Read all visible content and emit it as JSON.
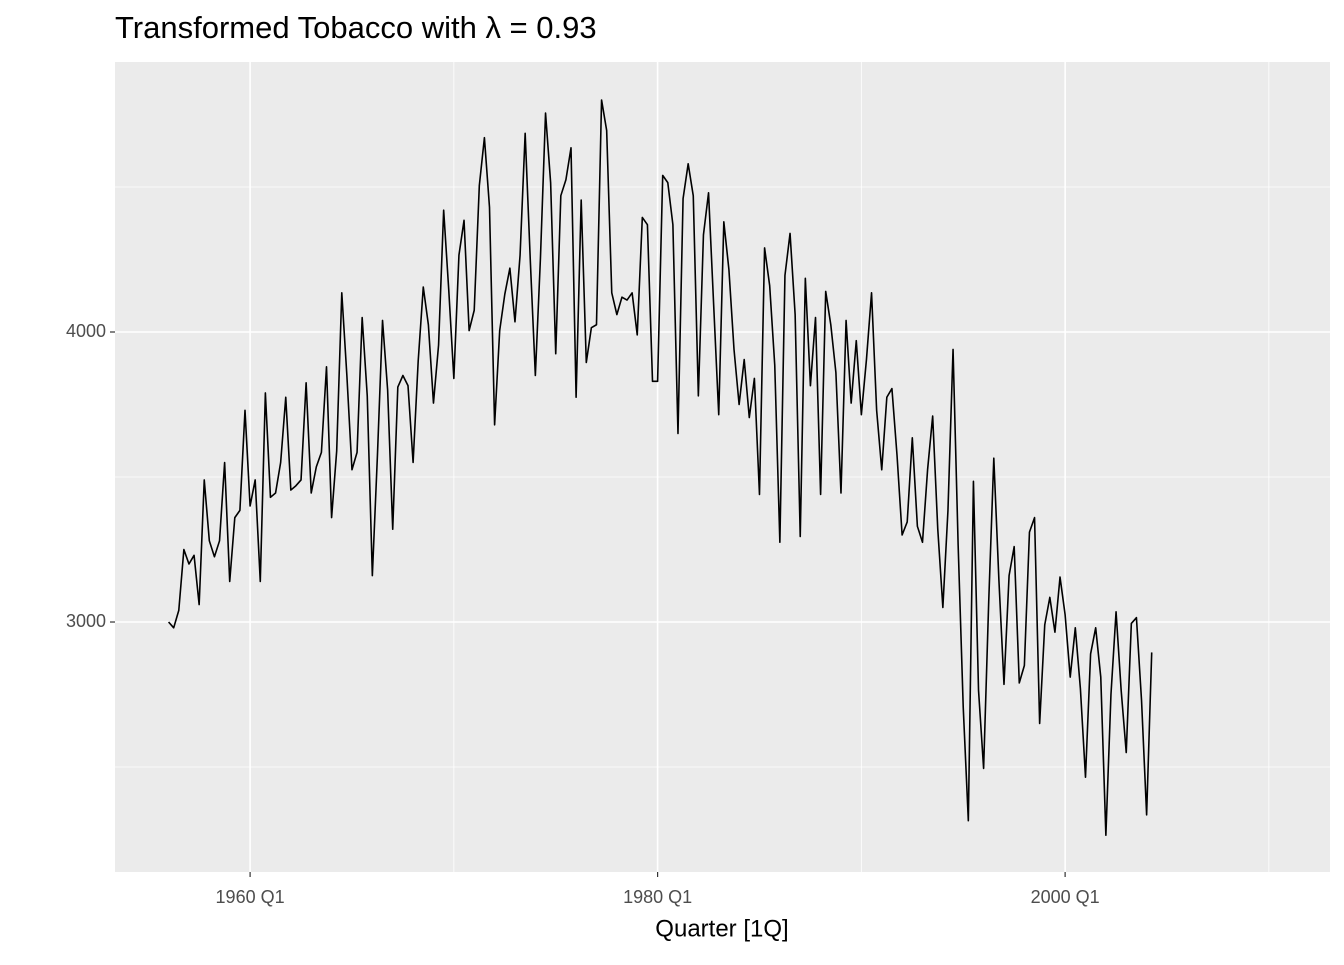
{
  "chart_data": {
    "type": "line",
    "title": "Transformed Tobacco with λ = 0.93",
    "x_label": "Quarter [1Q]",
    "x": [
      "1956 Q1",
      "1956 Q2",
      "1956 Q3",
      "1956 Q4",
      "1957 Q1",
      "1957 Q2",
      "1957 Q3",
      "1957 Q4",
      "1958 Q1",
      "1958 Q2",
      "1958 Q3",
      "1958 Q4",
      "1959 Q1",
      "1959 Q2",
      "1959 Q3",
      "1959 Q4",
      "1960 Q1",
      "1960 Q2",
      "1960 Q3",
      "1960 Q4",
      "1961 Q1",
      "1961 Q2",
      "1961 Q3",
      "1961 Q4",
      "1962 Q1",
      "1962 Q2",
      "1962 Q3",
      "1962 Q4",
      "1963 Q1",
      "1963 Q2",
      "1963 Q3",
      "1963 Q4",
      "1964 Q1",
      "1964 Q2",
      "1964 Q3",
      "1964 Q4",
      "1965 Q1",
      "1965 Q2",
      "1965 Q3",
      "1965 Q4",
      "1966 Q1",
      "1966 Q2",
      "1966 Q3",
      "1966 Q4",
      "1967 Q1",
      "1967 Q2",
      "1967 Q3",
      "1967 Q4",
      "1968 Q1",
      "1968 Q2",
      "1968 Q3",
      "1968 Q4",
      "1969 Q1",
      "1969 Q2",
      "1969 Q3",
      "1969 Q4",
      "1970 Q1",
      "1970 Q2",
      "1970 Q3",
      "1970 Q4",
      "1971 Q1",
      "1971 Q2",
      "1971 Q3",
      "1971 Q4",
      "1972 Q1",
      "1972 Q2",
      "1972 Q3",
      "1972 Q4",
      "1973 Q1",
      "1973 Q2",
      "1973 Q3",
      "1973 Q4",
      "1974 Q1",
      "1974 Q2",
      "1974 Q3",
      "1974 Q4",
      "1975 Q1",
      "1975 Q2",
      "1975 Q3",
      "1975 Q4",
      "1976 Q1",
      "1976 Q2",
      "1976 Q3",
      "1976 Q4",
      "1977 Q1",
      "1977 Q2",
      "1977 Q3",
      "1977 Q4",
      "1978 Q1",
      "1978 Q2",
      "1978 Q3",
      "1978 Q4",
      "1979 Q1",
      "1979 Q2",
      "1979 Q3",
      "1979 Q4",
      "1980 Q1",
      "1980 Q2",
      "1980 Q3",
      "1980 Q4",
      "1981 Q1",
      "1981 Q2",
      "1981 Q3",
      "1981 Q4",
      "1982 Q1",
      "1982 Q2",
      "1982 Q3",
      "1982 Q4",
      "1983 Q1",
      "1983 Q2",
      "1983 Q3",
      "1983 Q4",
      "1984 Q1",
      "1984 Q2",
      "1984 Q3",
      "1984 Q4",
      "1985 Q1",
      "1985 Q2",
      "1985 Q3",
      "1985 Q4",
      "1986 Q1",
      "1986 Q2",
      "1986 Q3",
      "1986 Q4",
      "1987 Q1",
      "1987 Q2",
      "1987 Q3",
      "1987 Q4",
      "1988 Q1",
      "1988 Q2",
      "1988 Q3",
      "1988 Q4",
      "1989 Q1",
      "1989 Q2",
      "1989 Q3",
      "1989 Q4",
      "1990 Q1",
      "1990 Q2",
      "1990 Q3",
      "1990 Q4",
      "1991 Q1",
      "1991 Q2",
      "1991 Q3",
      "1991 Q4",
      "1992 Q1",
      "1992 Q2",
      "1992 Q3",
      "1992 Q4",
      "1993 Q1",
      "1993 Q2",
      "1993 Q3",
      "1993 Q4",
      "1994 Q1",
      "1994 Q2",
      "1994 Q3",
      "1994 Q4",
      "1995 Q1",
      "1995 Q2",
      "1995 Q3",
      "1995 Q4",
      "1996 Q1",
      "1996 Q2",
      "1996 Q3",
      "1996 Q4",
      "1997 Q1",
      "1997 Q2",
      "1997 Q3",
      "1997 Q4",
      "1998 Q1",
      "1998 Q2",
      "1998 Q3",
      "1998 Q4",
      "1999 Q1",
      "1999 Q2",
      "1999 Q3",
      "1999 Q4",
      "2000 Q1",
      "2000 Q2",
      "2000 Q3",
      "2000 Q4",
      "2001 Q1",
      "2001 Q2",
      "2001 Q3",
      "2001 Q4",
      "2002 Q1",
      "2002 Q2",
      "2002 Q3",
      "2002 Q4",
      "2003 Q1",
      "2003 Q2",
      "2003 Q3",
      "2003 Q4",
      "2004 Q1",
      "2004 Q2"
    ],
    "values": [
      3000,
      2980,
      3040,
      3250,
      3200,
      3230,
      3060,
      3490,
      3280,
      3225,
      3280,
      3550,
      3140,
      3360,
      3385,
      3730,
      3400,
      3490,
      3140,
      3790,
      3430,
      3445,
      3550,
      3775,
      3455,
      3470,
      3490,
      3825,
      3445,
      3535,
      3585,
      3880,
      3360,
      3590,
      4135,
      3850,
      3525,
      3585,
      4050,
      3780,
      3160,
      3575,
      4040,
      3800,
      3320,
      3810,
      3850,
      3815,
      3550,
      3900,
      4155,
      4025,
      3755,
      3955,
      4420,
      4145,
      3840,
      4265,
      4385,
      4005,
      4075,
      4505,
      4670,
      4430,
      3680,
      4005,
      4130,
      4220,
      4035,
      4265,
      4685,
      4250,
      3850,
      4255,
      4755,
      4515,
      3925,
      4470,
      4525,
      4635,
      3775,
      4455,
      3895,
      4015,
      4025,
      4800,
      4695,
      4135,
      4060,
      4120,
      4110,
      4135,
      3990,
      4395,
      4370,
      3830,
      3830,
      4540,
      4515,
      4370,
      3650,
      4460,
      4580,
      4470,
      3780,
      4335,
      4480,
      4095,
      3715,
      4380,
      4215,
      3940,
      3750,
      3905,
      3705,
      3840,
      3440,
      4290,
      4160,
      3885,
      3275,
      4195,
      4340,
      4060,
      3295,
      4185,
      3815,
      4050,
      3440,
      4140,
      4025,
      3860,
      3445,
      4040,
      3755,
      3970,
      3715,
      3905,
      4135,
      3730,
      3525,
      3775,
      3805,
      3575,
      3300,
      3345,
      3635,
      3330,
      3275,
      3525,
      3710,
      3320,
      3050,
      3385,
      3940,
      3265,
      2705,
      2315,
      3485,
      2765,
      2495,
      3070,
      3565,
      3145,
      2785,
      3160,
      3260,
      2790,
      2850,
      3310,
      3360,
      2650,
      2990,
      3085,
      2965,
      3155,
      3025,
      2810,
      2980,
      2770,
      2465,
      2890,
      2980,
      2810,
      2265,
      2750,
      3035,
      2765,
      2550,
      2995,
      3015,
      2730,
      2335,
      2895
    ],
    "color": "#000000",
    "xlim": [
      1953.37,
      2013.0
    ],
    "xticks": [
      {
        "value": 1960,
        "label": "1960 Q1"
      },
      {
        "value": 1980,
        "label": "1980 Q1"
      },
      {
        "value": 2000,
        "label": "2000 Q1"
      }
    ],
    "ylim": [
      2138,
      4931
    ],
    "yticks": [
      3000,
      4000
    ],
    "grid": true
  }
}
